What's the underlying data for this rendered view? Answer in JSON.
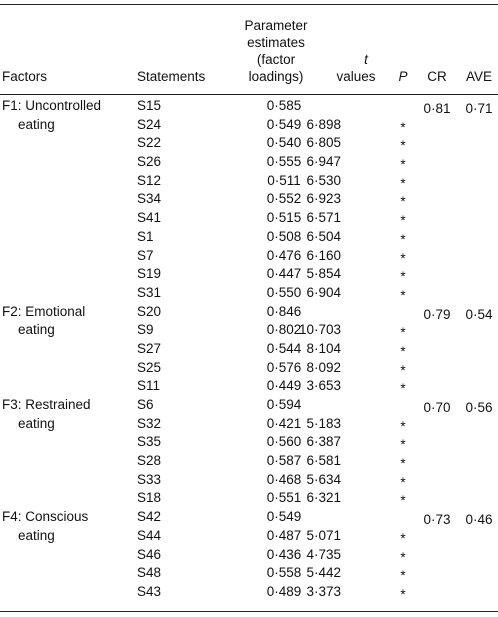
{
  "table": {
    "headers": {
      "factors": "Factors",
      "statements": "Statements",
      "estimates_line1": "Parameter",
      "estimates_line2": "estimates",
      "estimates_line3": "(factor",
      "estimates_line4": "loadings)",
      "t_line1": "t",
      "t_line2": "values",
      "p": "P",
      "cr": "CR",
      "ave": "AVE"
    },
    "groups": [
      {
        "factor_line1": "F1: Uncontrolled",
        "factor_line2": "eating",
        "cr": "0·81",
        "ave": "0·71",
        "rows": [
          {
            "statement": "S15",
            "loading": "0·585",
            "t": "",
            "p": ""
          },
          {
            "statement": "S24",
            "loading": "0·549",
            "t": "6·898",
            "p": "*"
          },
          {
            "statement": "S22",
            "loading": "0·540",
            "t": "6·805",
            "p": "*"
          },
          {
            "statement": "S26",
            "loading": "0·555",
            "t": "6·947",
            "p": "*"
          },
          {
            "statement": "S12",
            "loading": "0·511",
            "t": "6·530",
            "p": "*"
          },
          {
            "statement": "S34",
            "loading": "0·552",
            "t": "6·923",
            "p": "*"
          },
          {
            "statement": "S41",
            "loading": "0·515",
            "t": "6·571",
            "p": "*"
          },
          {
            "statement": "S1",
            "loading": "0·508",
            "t": "6·504",
            "p": "*"
          },
          {
            "statement": "S7",
            "loading": "0·476",
            "t": "6·160",
            "p": "*"
          },
          {
            "statement": "S19",
            "loading": "0·447",
            "t": "5·854",
            "p": "*"
          },
          {
            "statement": "S31",
            "loading": "0·550",
            "t": "6·904",
            "p": "*"
          }
        ]
      },
      {
        "factor_line1": "F2: Emotional",
        "factor_line2": "eating",
        "cr": "0·79",
        "ave": "0·54",
        "rows": [
          {
            "statement": "S20",
            "loading": "0·846",
            "t": "",
            "p": ""
          },
          {
            "statement": "S9",
            "loading": "0·802",
            "t": "10·703",
            "p": "*"
          },
          {
            "statement": "S27",
            "loading": "0·544",
            "t": "8·104",
            "p": "*"
          },
          {
            "statement": "S25",
            "loading": "0·576",
            "t": "8·092",
            "p": "*"
          },
          {
            "statement": "S11",
            "loading": "0·449",
            "t": "3·653",
            "p": "*"
          }
        ]
      },
      {
        "factor_line1": "F3: Restrained",
        "factor_line2": "eating",
        "cr": "0·70",
        "ave": "0·56",
        "rows": [
          {
            "statement": "S6",
            "loading": "0·594",
            "t": "",
            "p": ""
          },
          {
            "statement": "S32",
            "loading": "0·421",
            "t": "5·183",
            "p": "*"
          },
          {
            "statement": "S35",
            "loading": "0·560",
            "t": "6·387",
            "p": "*"
          },
          {
            "statement": "S28",
            "loading": "0·587",
            "t": "6·581",
            "p": "*"
          },
          {
            "statement": "S33",
            "loading": "0·468",
            "t": "5·634",
            "p": "*"
          },
          {
            "statement": "S18",
            "loading": "0·551",
            "t": "6·321",
            "p": "*"
          }
        ]
      },
      {
        "factor_line1": "F4: Conscious",
        "factor_line2": "eating",
        "cr": "0·73",
        "ave": "0·46",
        "rows": [
          {
            "statement": "S42",
            "loading": "0·549",
            "t": "",
            "p": ""
          },
          {
            "statement": "S44",
            "loading": "0·487",
            "t": "5·071",
            "p": "*"
          },
          {
            "statement": "S46",
            "loading": "0·436",
            "t": "4·735",
            "p": "*"
          },
          {
            "statement": "S48",
            "loading": "0·558",
            "t": "5·442",
            "p": "*"
          },
          {
            "statement": "S43",
            "loading": "0·489",
            "t": "3·373",
            "p": "*"
          }
        ]
      }
    ]
  }
}
